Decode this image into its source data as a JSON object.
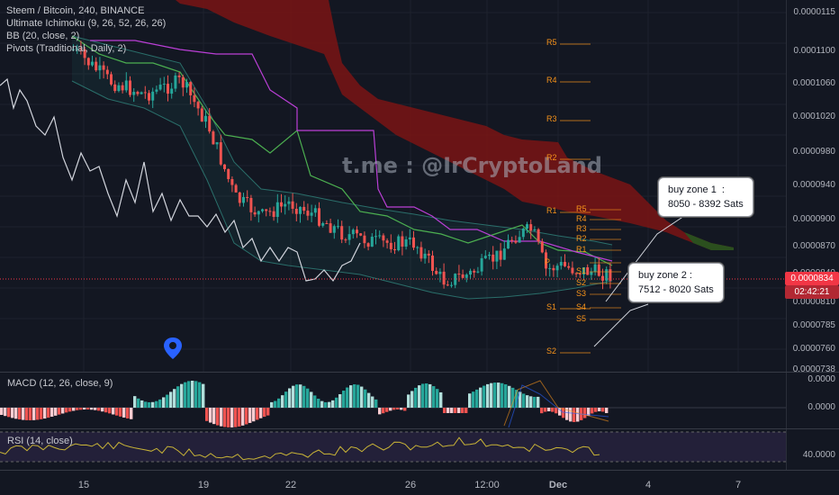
{
  "legend": {
    "symbol": "Steem / Bitcoin, 240, BINANCE",
    "ichimoku": "Ultimate Ichimoku (9, 26, 52, 26, 26)",
    "bb": "BB (20, close, 2)",
    "pivots": "Pivots (Traditional, Daily, 2)"
  },
  "watermark": "t.me : @IrCryptoLand",
  "callouts": {
    "zone1": "buy zone 1  :\n8050 - 8392 Sats",
    "zone2": "buy zone 2 :\n7512 - 8020 Sats"
  },
  "price_axis": [
    "0.0000115",
    "0.0001100",
    "0.0001060",
    "0.0001020",
    "0.0000980",
    "0.0000940",
    "0.0000900",
    "0.0000870",
    "0.0000840",
    "0.0000810",
    "0.0000785",
    "0.0000760",
    "0.0000738"
  ],
  "current_price": "0.0000834",
  "countdown": "02:42:21",
  "macd": {
    "label": "MACD (12, 26, close, 9)",
    "axis": [
      "0.0000",
      "0.0000"
    ]
  },
  "rsi": {
    "label": "RSI (14, close)",
    "axis": [
      "40.0000"
    ]
  },
  "date_axis": [
    "15",
    "19",
    "22",
    "26",
    "12:00",
    "Dec",
    "4",
    "7"
  ],
  "pivots_left": [
    "R5",
    "R4",
    "R3",
    "R2",
    "R1",
    "S1",
    "S2"
  ],
  "pivots_right": [
    "R5",
    "R4",
    "R3",
    "R2",
    "R1",
    "P",
    "S1",
    "S2",
    "S3",
    "S4",
    "S5"
  ],
  "colors": {
    "up": "#26a69a",
    "down": "#ef5350",
    "cloud": "#8b1a1a",
    "price_tag": "#f23645"
  },
  "icons": {
    "marker": "map-pin-icon"
  }
}
